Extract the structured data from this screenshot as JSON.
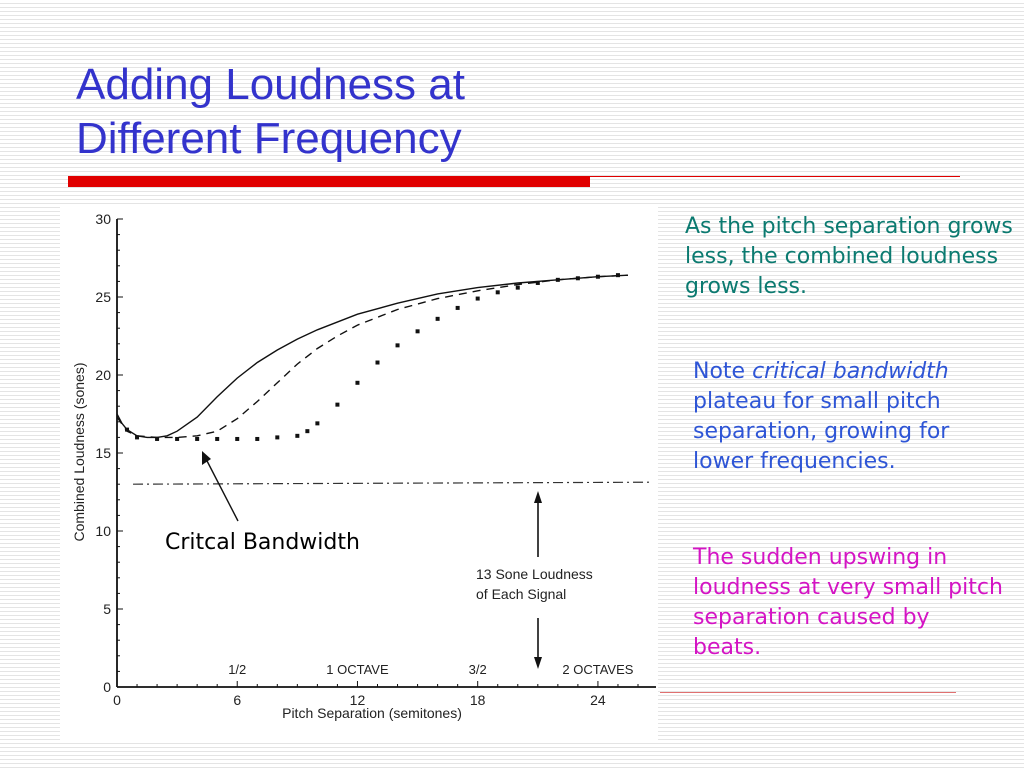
{
  "slide": {
    "title_lines": [
      "Adding Loudness at",
      "Different Frequency"
    ],
    "note_1": "As the pitch separation grows less, the combined loudness grows less.",
    "note_2_prefix": "Note ",
    "note_2_emphasis": "critical bandwidth",
    "note_2_suffix": " plateau for small pitch separation, growing for lower frequencies.",
    "note_3": "The sudden upswing in loudness at very small pitch separation caused by beats."
  },
  "colors": {
    "title": "#3333cc",
    "note_1": "#0b7a70",
    "note_2": "#2e55d6",
    "note_3": "#d414c4",
    "rule": "#e00000"
  },
  "chart_data": {
    "type": "line",
    "xlabel": "Pitch Separation (semitones)",
    "ylabel": "Combined Loudness (sones)",
    "xlim": [
      0,
      26
    ],
    "ylim": [
      0,
      30
    ],
    "x_ticks": [
      0,
      6,
      12,
      18,
      24
    ],
    "y_ticks": [
      0,
      5,
      10,
      15,
      20,
      25,
      30
    ],
    "y_tick_labels": [
      "0",
      "5",
      "10",
      "15",
      "20",
      "25",
      "30"
    ],
    "octave_labels": [
      {
        "x": 6,
        "text": "1/2"
      },
      {
        "x": 12,
        "text": "1 OCTAVE"
      },
      {
        "x": 18,
        "text": "3/2"
      },
      {
        "x": 24,
        "text": "2 OCTAVES"
      }
    ],
    "series": [
      {
        "style": "solid",
        "x": [
          0,
          0.25,
          0.5,
          1,
          1.5,
          2,
          2.5,
          3,
          4,
          5,
          6,
          7,
          8,
          9,
          10,
          12,
          14,
          16,
          18,
          20,
          22,
          24,
          25.5
        ],
        "y": [
          17.5,
          16.9,
          16.5,
          16.1,
          16.0,
          16.0,
          16.1,
          16.4,
          17.3,
          18.6,
          19.8,
          20.8,
          21.6,
          22.3,
          22.9,
          23.9,
          24.6,
          25.2,
          25.6,
          25.9,
          26.1,
          26.3,
          26.4
        ]
      },
      {
        "style": "dashed",
        "x": [
          0,
          0.5,
          1,
          2,
          3,
          4,
          5,
          6,
          7,
          8,
          9,
          10,
          11,
          12,
          14,
          16,
          18,
          20,
          22,
          24,
          25.5
        ],
        "y": [
          17.3,
          16.4,
          16.1,
          16.0,
          16.0,
          16.1,
          16.4,
          17.2,
          18.3,
          19.5,
          20.7,
          21.7,
          22.5,
          23.2,
          24.2,
          24.9,
          25.4,
          25.8,
          26.1,
          26.3,
          26.4
        ]
      },
      {
        "style": "dotted",
        "x": [
          0.5,
          1,
          2,
          3,
          4,
          5,
          6,
          7,
          8,
          9,
          9.5,
          10,
          11,
          12,
          13,
          14,
          15,
          16,
          17,
          18,
          19,
          20,
          21,
          22,
          23,
          24,
          25
        ],
        "y": [
          16.5,
          16.0,
          15.9,
          15.9,
          15.9,
          15.9,
          15.9,
          15.9,
          16.0,
          16.1,
          16.4,
          16.9,
          18.1,
          19.5,
          20.8,
          21.9,
          22.8,
          23.6,
          24.3,
          24.9,
          25.3,
          25.6,
          25.9,
          26.1,
          26.2,
          26.3,
          26.4
        ]
      }
    ],
    "reference_line": {
      "y": 13,
      "style": "dash-dot"
    },
    "annotations": {
      "critical_bandwidth": "Critcal Bandwidth",
      "sone_loudness": [
        "13 Sone Loudness",
        "of Each Signal"
      ]
    }
  }
}
